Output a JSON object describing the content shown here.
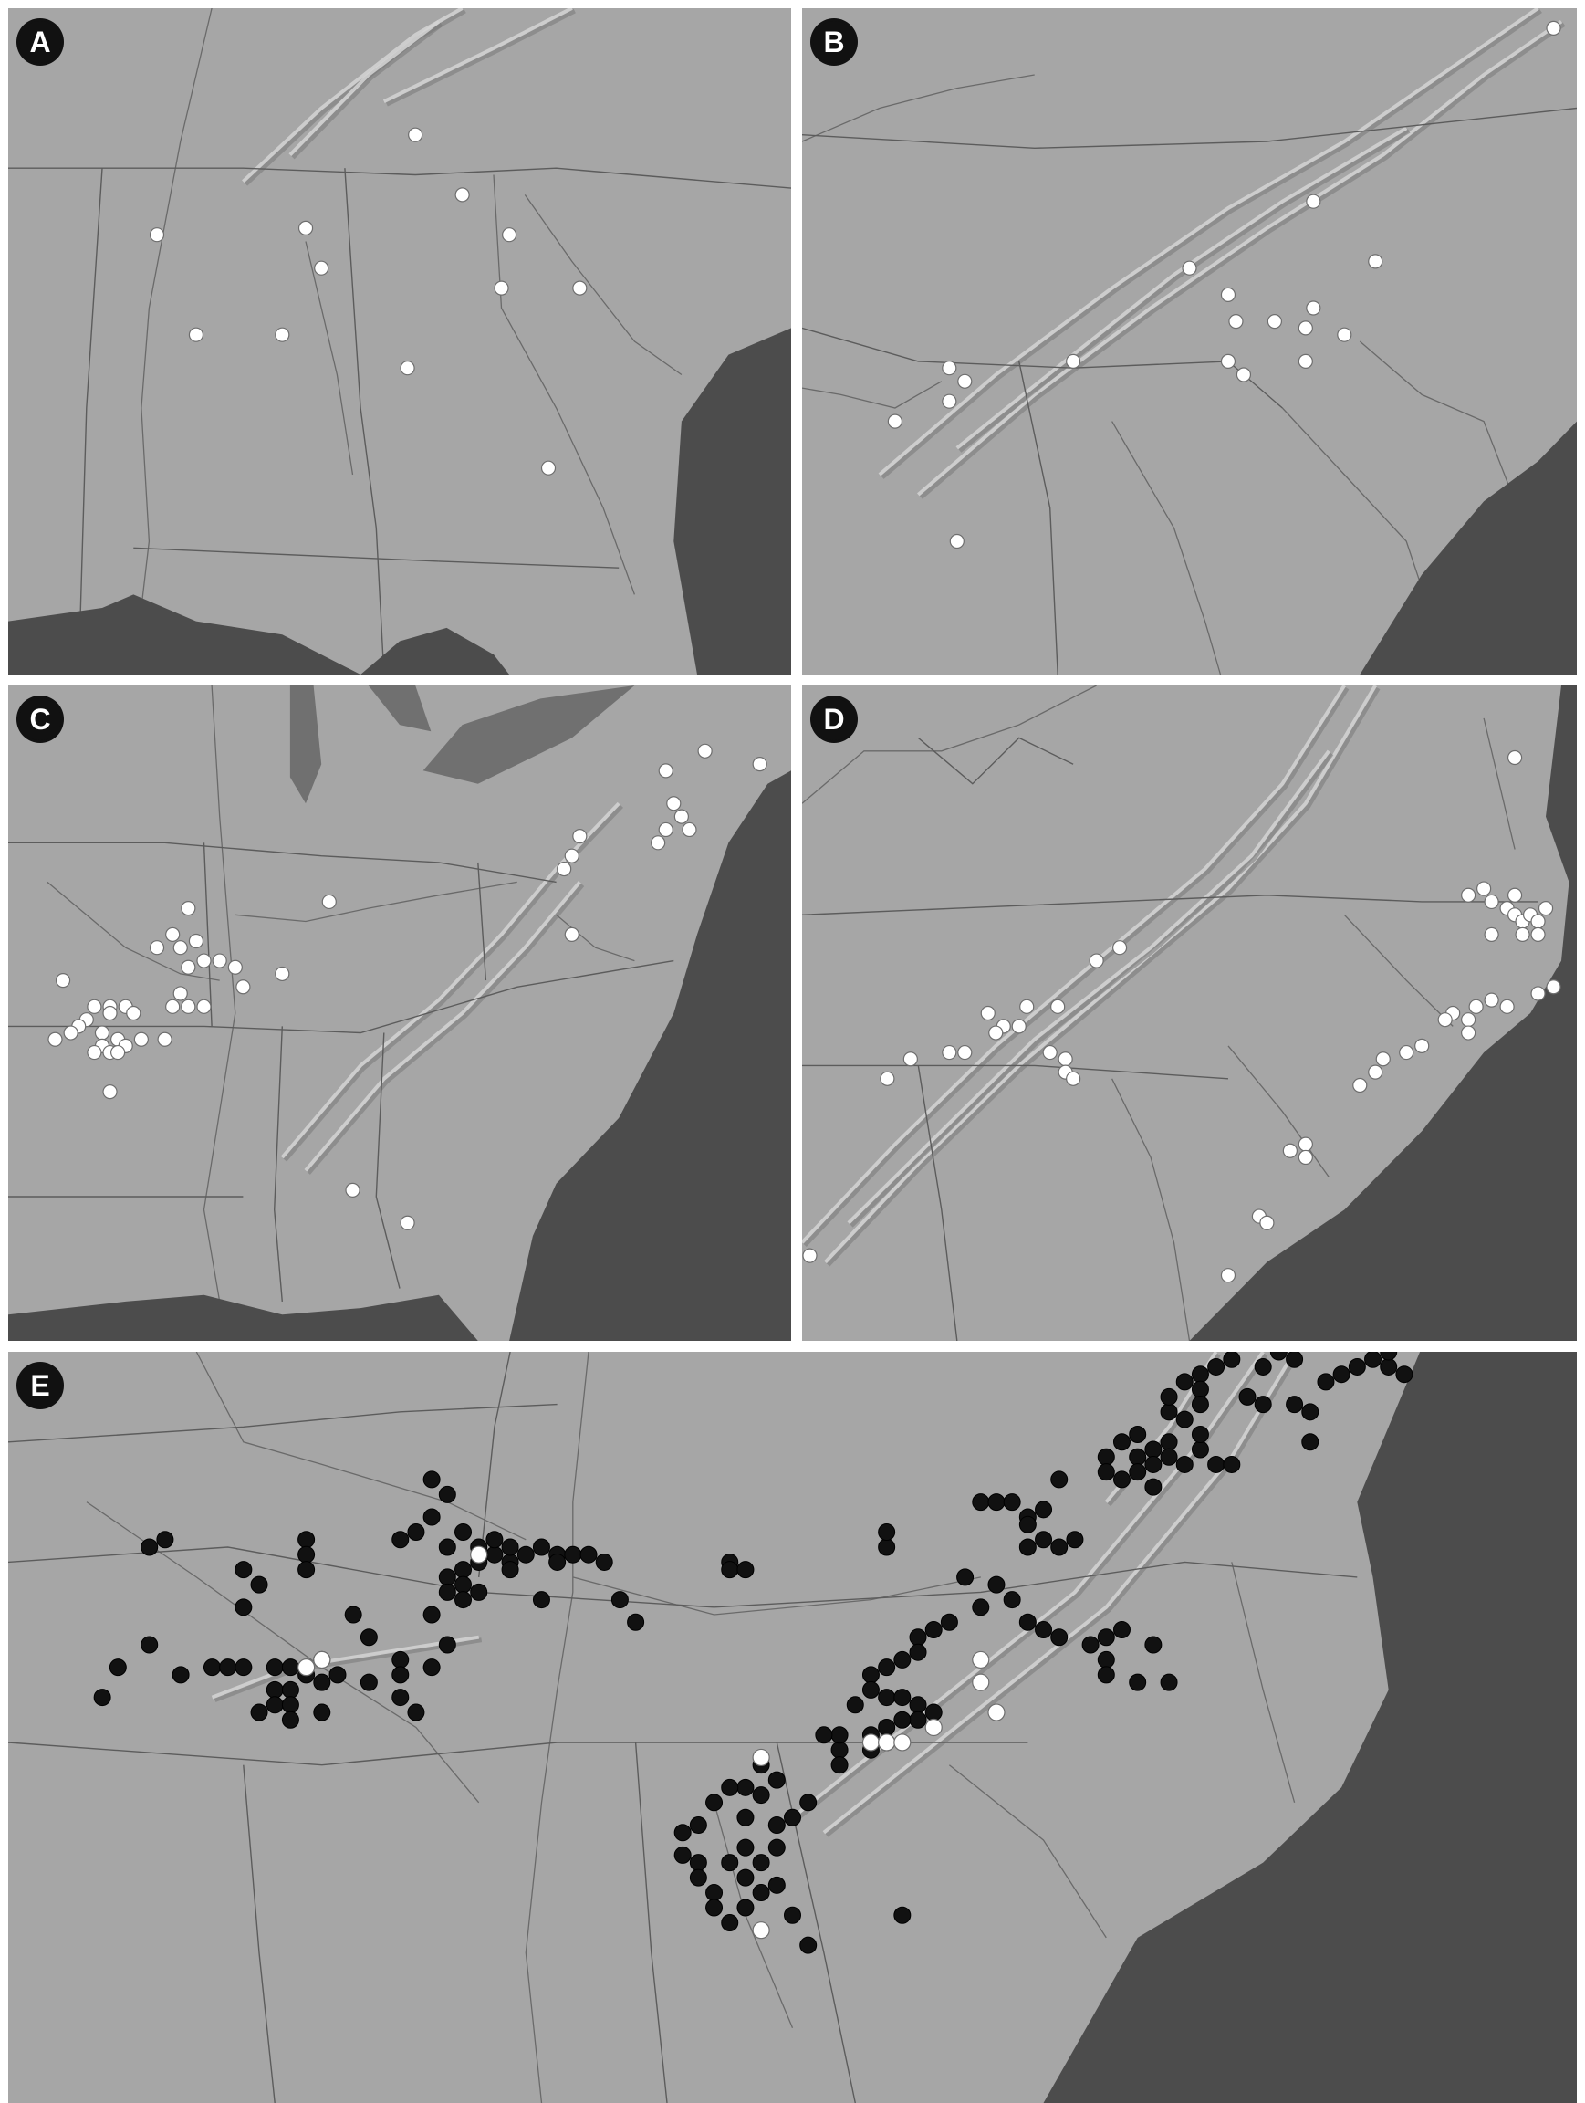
{
  "panels": [
    {
      "id": "a",
      "label": "A",
      "marker": "white",
      "sites": [
        [
          0.19,
          0.34
        ],
        [
          0.24,
          0.49
        ],
        [
          0.38,
          0.33
        ],
        [
          0.4,
          0.39
        ],
        [
          0.35,
          0.49
        ],
        [
          0.52,
          0.19
        ],
        [
          0.58,
          0.28
        ],
        [
          0.64,
          0.34
        ],
        [
          0.63,
          0.42
        ],
        [
          0.73,
          0.42
        ],
        [
          0.51,
          0.54
        ],
        [
          0.69,
          0.69
        ]
      ]
    },
    {
      "id": "b",
      "label": "B",
      "marker": "white",
      "sites": [
        [
          0.97,
          0.03
        ],
        [
          0.55,
          0.43
        ],
        [
          0.5,
          0.39
        ],
        [
          0.56,
          0.47
        ],
        [
          0.61,
          0.47
        ],
        [
          0.65,
          0.48
        ],
        [
          0.66,
          0.45
        ],
        [
          0.57,
          0.55
        ],
        [
          0.65,
          0.53
        ],
        [
          0.74,
          0.38
        ],
        [
          0.66,
          0.29
        ],
        [
          0.55,
          0.53
        ],
        [
          0.35,
          0.53
        ],
        [
          0.19,
          0.54
        ],
        [
          0.21,
          0.56
        ],
        [
          0.19,
          0.59
        ],
        [
          0.12,
          0.62
        ],
        [
          0.2,
          0.8
        ],
        [
          0.7,
          0.49
        ]
      ]
    },
    {
      "id": "c",
      "label": "C",
      "marker": "white",
      "sites": [
        [
          0.89,
          0.1
        ],
        [
          0.84,
          0.13
        ],
        [
          0.96,
          0.12
        ],
        [
          0.85,
          0.18
        ],
        [
          0.86,
          0.2
        ],
        [
          0.84,
          0.22
        ],
        [
          0.87,
          0.22
        ],
        [
          0.83,
          0.24
        ],
        [
          0.73,
          0.23
        ],
        [
          0.72,
          0.26
        ],
        [
          0.71,
          0.28
        ],
        [
          0.72,
          0.38
        ],
        [
          0.41,
          0.33
        ],
        [
          0.23,
          0.34
        ],
        [
          0.21,
          0.38
        ],
        [
          0.19,
          0.4
        ],
        [
          0.22,
          0.4
        ],
        [
          0.24,
          0.39
        ],
        [
          0.25,
          0.42
        ],
        [
          0.23,
          0.43
        ],
        [
          0.27,
          0.42
        ],
        [
          0.29,
          0.43
        ],
        [
          0.3,
          0.46
        ],
        [
          0.35,
          0.44
        ],
        [
          0.22,
          0.47
        ],
        [
          0.23,
          0.49
        ],
        [
          0.25,
          0.49
        ],
        [
          0.21,
          0.49
        ],
        [
          0.07,
          0.45
        ],
        [
          0.11,
          0.49
        ],
        [
          0.13,
          0.49
        ],
        [
          0.15,
          0.49
        ],
        [
          0.13,
          0.5
        ],
        [
          0.16,
          0.5
        ],
        [
          0.1,
          0.51
        ],
        [
          0.09,
          0.52
        ],
        [
          0.12,
          0.53
        ],
        [
          0.14,
          0.54
        ],
        [
          0.15,
          0.55
        ],
        [
          0.17,
          0.54
        ],
        [
          0.2,
          0.54
        ],
        [
          0.12,
          0.55
        ],
        [
          0.13,
          0.56
        ],
        [
          0.14,
          0.56
        ],
        [
          0.11,
          0.56
        ],
        [
          0.06,
          0.54
        ],
        [
          0.08,
          0.53
        ],
        [
          0.13,
          0.62
        ],
        [
          0.44,
          0.77
        ],
        [
          0.51,
          0.82
        ]
      ]
    },
    {
      "id": "d",
      "label": "D",
      "marker": "white",
      "sites": [
        [
          0.92,
          0.11
        ],
        [
          0.88,
          0.31
        ],
        [
          0.89,
          0.33
        ],
        [
          0.92,
          0.32
        ],
        [
          0.86,
          0.32
        ],
        [
          0.91,
          0.34
        ],
        [
          0.92,
          0.35
        ],
        [
          0.93,
          0.36
        ],
        [
          0.94,
          0.35
        ],
        [
          0.95,
          0.36
        ],
        [
          0.95,
          0.38
        ],
        [
          0.93,
          0.38
        ],
        [
          0.96,
          0.34
        ],
        [
          0.89,
          0.38
        ],
        [
          0.97,
          0.46
        ],
        [
          0.95,
          0.47
        ],
        [
          0.91,
          0.49
        ],
        [
          0.86,
          0.51
        ],
        [
          0.87,
          0.49
        ],
        [
          0.84,
          0.5
        ],
        [
          0.83,
          0.51
        ],
        [
          0.86,
          0.53
        ],
        [
          0.89,
          0.48
        ],
        [
          0.8,
          0.55
        ],
        [
          0.78,
          0.56
        ],
        [
          0.75,
          0.57
        ],
        [
          0.74,
          0.59
        ],
        [
          0.72,
          0.61
        ],
        [
          0.65,
          0.7
        ],
        [
          0.63,
          0.71
        ],
        [
          0.65,
          0.72
        ],
        [
          0.59,
          0.81
        ],
        [
          0.6,
          0.82
        ],
        [
          0.55,
          0.9
        ],
        [
          0.41,
          0.4
        ],
        [
          0.38,
          0.42
        ],
        [
          0.33,
          0.49
        ],
        [
          0.29,
          0.49
        ],
        [
          0.24,
          0.5
        ],
        [
          0.26,
          0.52
        ],
        [
          0.28,
          0.52
        ],
        [
          0.25,
          0.53
        ],
        [
          0.21,
          0.56
        ],
        [
          0.32,
          0.56
        ],
        [
          0.34,
          0.57
        ],
        [
          0.34,
          0.59
        ],
        [
          0.35,
          0.6
        ],
        [
          0.14,
          0.57
        ],
        [
          0.19,
          0.56
        ],
        [
          0.11,
          0.6
        ],
        [
          0.01,
          0.87
        ]
      ]
    },
    {
      "id": "e",
      "label": "E",
      "marker": "mixed",
      "black_sites": [
        [
          0.09,
          0.26
        ],
        [
          0.1,
          0.25
        ],
        [
          0.15,
          0.29
        ],
        [
          0.19,
          0.25
        ],
        [
          0.19,
          0.27
        ],
        [
          0.19,
          0.29
        ],
        [
          0.16,
          0.31
        ],
        [
          0.15,
          0.34
        ],
        [
          0.09,
          0.39
        ],
        [
          0.07,
          0.42
        ],
        [
          0.11,
          0.43
        ],
        [
          0.13,
          0.42
        ],
        [
          0.14,
          0.42
        ],
        [
          0.15,
          0.42
        ],
        [
          0.17,
          0.42
        ],
        [
          0.18,
          0.42
        ],
        [
          0.19,
          0.43
        ],
        [
          0.21,
          0.43
        ],
        [
          0.2,
          0.44
        ],
        [
          0.17,
          0.45
        ],
        [
          0.18,
          0.45
        ],
        [
          0.17,
          0.47
        ],
        [
          0.18,
          0.47
        ],
        [
          0.16,
          0.48
        ],
        [
          0.18,
          0.49
        ],
        [
          0.2,
          0.48
        ],
        [
          0.2,
          0.41
        ],
        [
          0.23,
          0.38
        ],
        [
          0.22,
          0.35
        ],
        [
          0.25,
          0.41
        ],
        [
          0.23,
          0.44
        ],
        [
          0.25,
          0.43
        ],
        [
          0.27,
          0.42
        ],
        [
          0.25,
          0.46
        ],
        [
          0.26,
          0.48
        ],
        [
          0.28,
          0.39
        ],
        [
          0.27,
          0.35
        ],
        [
          0.06,
          0.46
        ],
        [
          0.27,
          0.17
        ],
        [
          0.28,
          0.19
        ],
        [
          0.27,
          0.22
        ],
        [
          0.26,
          0.24
        ],
        [
          0.25,
          0.25
        ],
        [
          0.28,
          0.26
        ],
        [
          0.29,
          0.24
        ],
        [
          0.3,
          0.26
        ],
        [
          0.31,
          0.27
        ],
        [
          0.31,
          0.25
        ],
        [
          0.3,
          0.28
        ],
        [
          0.29,
          0.29
        ],
        [
          0.28,
          0.3
        ],
        [
          0.29,
          0.31
        ],
        [
          0.28,
          0.32
        ],
        [
          0.29,
          0.33
        ],
        [
          0.3,
          0.32
        ],
        [
          0.32,
          0.28
        ],
        [
          0.32,
          0.26
        ],
        [
          0.33,
          0.27
        ],
        [
          0.32,
          0.29
        ],
        [
          0.34,
          0.26
        ],
        [
          0.35,
          0.27
        ],
        [
          0.36,
          0.27
        ],
        [
          0.37,
          0.27
        ],
        [
          0.38,
          0.28
        ],
        [
          0.35,
          0.28
        ],
        [
          0.39,
          0.33
        ],
        [
          0.46,
          0.28
        ],
        [
          0.46,
          0.29
        ],
        [
          0.47,
          0.29
        ],
        [
          0.56,
          0.26
        ],
        [
          0.56,
          0.24
        ],
        [
          0.62,
          0.2
        ],
        [
          0.63,
          0.2
        ],
        [
          0.64,
          0.2
        ],
        [
          0.65,
          0.22
        ],
        [
          0.66,
          0.21
        ],
        [
          0.65,
          0.23
        ],
        [
          0.66,
          0.25
        ],
        [
          0.65,
          0.26
        ],
        [
          0.67,
          0.26
        ],
        [
          0.68,
          0.25
        ],
        [
          0.67,
          0.17
        ],
        [
          0.7,
          0.14
        ],
        [
          0.7,
          0.16
        ],
        [
          0.71,
          0.17
        ],
        [
          0.72,
          0.14
        ],
        [
          0.71,
          0.12
        ],
        [
          0.72,
          0.11
        ],
        [
          0.73,
          0.13
        ],
        [
          0.73,
          0.15
        ],
        [
          0.72,
          0.16
        ],
        [
          0.74,
          0.12
        ],
        [
          0.74,
          0.14
        ],
        [
          0.73,
          0.18
        ],
        [
          0.75,
          0.15
        ],
        [
          0.76,
          0.13
        ],
        [
          0.77,
          0.15
        ],
        [
          0.78,
          0.15
        ],
        [
          0.76,
          0.11
        ],
        [
          0.75,
          0.09
        ],
        [
          0.74,
          0.08
        ],
        [
          0.74,
          0.06
        ],
        [
          0.75,
          0.04
        ],
        [
          0.76,
          0.03
        ],
        [
          0.77,
          0.02
        ],
        [
          0.78,
          0.01
        ],
        [
          0.79,
          0.06
        ],
        [
          0.8,
          0.07
        ],
        [
          0.82,
          0.07
        ],
        [
          0.83,
          0.08
        ],
        [
          0.84,
          0.04
        ],
        [
          0.85,
          0.03
        ],
        [
          0.86,
          0.02
        ],
        [
          0.87,
          0.01
        ],
        [
          0.88,
          0.02
        ],
        [
          0.89,
          0.03
        ],
        [
          0.88,
          0.0
        ],
        [
          0.82,
          0.01
        ],
        [
          0.8,
          0.02
        ],
        [
          0.81,
          0.0
        ],
        [
          0.76,
          0.05
        ],
        [
          0.76,
          0.07
        ],
        [
          0.83,
          0.12
        ],
        [
          0.61,
          0.3
        ],
        [
          0.63,
          0.31
        ],
        [
          0.64,
          0.33
        ],
        [
          0.62,
          0.34
        ],
        [
          0.6,
          0.36
        ],
        [
          0.59,
          0.37
        ],
        [
          0.58,
          0.38
        ],
        [
          0.58,
          0.4
        ],
        [
          0.57,
          0.41
        ],
        [
          0.56,
          0.42
        ],
        [
          0.55,
          0.43
        ],
        [
          0.55,
          0.45
        ],
        [
          0.56,
          0.46
        ],
        [
          0.57,
          0.46
        ],
        [
          0.58,
          0.47
        ],
        [
          0.59,
          0.48
        ],
        [
          0.58,
          0.49
        ],
        [
          0.57,
          0.49
        ],
        [
          0.56,
          0.5
        ],
        [
          0.55,
          0.51
        ],
        [
          0.56,
          0.52
        ],
        [
          0.55,
          0.53
        ],
        [
          0.54,
          0.47
        ],
        [
          0.53,
          0.53
        ],
        [
          0.53,
          0.51
        ],
        [
          0.52,
          0.51
        ],
        [
          0.53,
          0.55
        ],
        [
          0.65,
          0.36
        ],
        [
          0.66,
          0.37
        ],
        [
          0.67,
          0.38
        ],
        [
          0.7,
          0.38
        ],
        [
          0.71,
          0.37
        ],
        [
          0.69,
          0.39
        ],
        [
          0.7,
          0.41
        ],
        [
          0.7,
          0.43
        ],
        [
          0.72,
          0.44
        ],
        [
          0.73,
          0.39
        ],
        [
          0.74,
          0.44
        ],
        [
          0.48,
          0.55
        ],
        [
          0.49,
          0.57
        ],
        [
          0.48,
          0.59
        ],
        [
          0.51,
          0.6
        ],
        [
          0.5,
          0.62
        ],
        [
          0.49,
          0.63
        ],
        [
          0.47,
          0.62
        ],
        [
          0.47,
          0.58
        ],
        [
          0.46,
          0.58
        ],
        [
          0.45,
          0.6
        ],
        [
          0.44,
          0.63
        ],
        [
          0.43,
          0.64
        ],
        [
          0.43,
          0.67
        ],
        [
          0.44,
          0.68
        ],
        [
          0.44,
          0.7
        ],
        [
          0.45,
          0.72
        ],
        [
          0.45,
          0.74
        ],
        [
          0.46,
          0.76
        ],
        [
          0.47,
          0.74
        ],
        [
          0.48,
          0.72
        ],
        [
          0.49,
          0.71
        ],
        [
          0.48,
          0.68
        ],
        [
          0.49,
          0.66
        ],
        [
          0.47,
          0.66
        ],
        [
          0.46,
          0.68
        ],
        [
          0.47,
          0.7
        ],
        [
          0.5,
          0.75
        ],
        [
          0.51,
          0.79
        ],
        [
          0.57,
          0.75
        ],
        [
          0.34,
          0.33
        ],
        [
          0.4,
          0.36
        ]
      ],
      "white_sites": [
        [
          0.3,
          0.27
        ],
        [
          0.19,
          0.42
        ],
        [
          0.2,
          0.41
        ],
        [
          0.48,
          0.54
        ],
        [
          0.48,
          0.77
        ],
        [
          0.55,
          0.52
        ],
        [
          0.56,
          0.52
        ],
        [
          0.57,
          0.52
        ],
        [
          0.59,
          0.5
        ],
        [
          0.62,
          0.44
        ],
        [
          0.62,
          0.41
        ],
        [
          0.63,
          0.48
        ]
      ]
    }
  ],
  "colors": {
    "land": "#a6a6a6",
    "ocean": "#4c4c4c",
    "lake": "#707070",
    "border": "#5c5c5c",
    "river": "#6a6a6a",
    "ridge": "#d4d4d4",
    "ridge_shadow": "#787878",
    "white_marker": "#ffffff",
    "black_marker": "#111111"
  }
}
